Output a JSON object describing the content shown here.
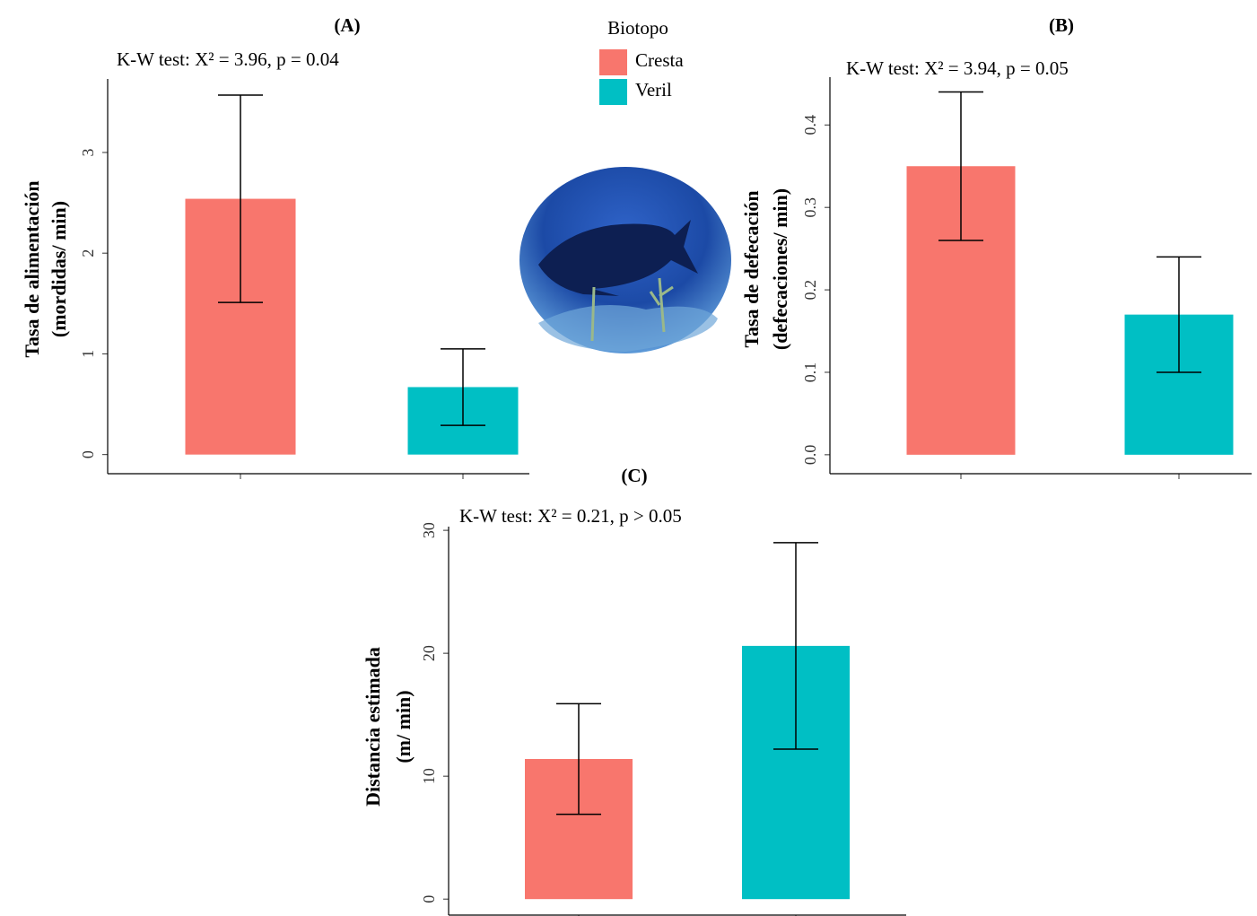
{
  "legend": {
    "title": "Biotopo",
    "entries": [
      {
        "name": "Cresta",
        "color": "#F8766D"
      },
      {
        "name": "Veril",
        "color": "#00BFC4"
      }
    ]
  },
  "chart_data": [
    {
      "type": "bar",
      "title": "(A)",
      "subtitle": "K-W test: X² = 3.96, p = 0.04",
      "ylabel": [
        "Tasa de alimentación",
        "(mordidas/ min)"
      ],
      "categories": [
        null,
        null
      ],
      "values": [
        2.54,
        0.67
      ],
      "errors": [
        1.03,
        0.38
      ],
      "ylim": [
        -0.19,
        3.73
      ],
      "yticks": [
        0,
        1,
        2,
        3
      ]
    },
    {
      "type": "bar",
      "title": "(B)",
      "subtitle": "K-W test: X² = 3.94, p = 0.05",
      "ylabel": [
        "Tasa de defecación",
        "(defecaciones/ min)"
      ],
      "categories": [
        null,
        null
      ],
      "values": [
        0.35,
        0.17
      ],
      "errors": [
        0.09,
        0.07
      ],
      "ylim": [
        -0.023,
        0.458
      ],
      "yticks": [
        {
          "value": 0,
          "label": "0.0"
        },
        0.1,
        0.2,
        0.3,
        0.4
      ]
    },
    {
      "type": "bar",
      "title": "(C)",
      "subtitle": "K-W test: X² = 0.21, p > 0.05",
      "ylabel": [
        "Distancia estimada",
        "(m/ min)"
      ],
      "categories": [
        null,
        null
      ],
      "values": [
        11.4,
        20.6
      ],
      "errors": [
        4.5,
        8.4
      ],
      "ylim": [
        -1.3,
        30.3
      ],
      "yticks": [
        0,
        10,
        20,
        30
      ]
    }
  ]
}
